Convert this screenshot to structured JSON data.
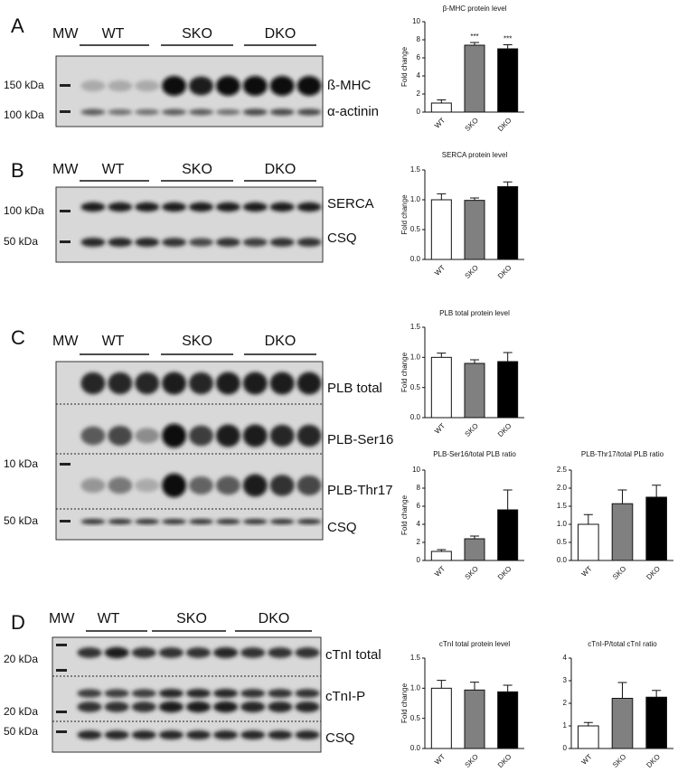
{
  "blots": [
    {
      "letter": "A",
      "mw": "MW",
      "groups": [
        "WT",
        "SKO",
        "DKO"
      ],
      "markers": [
        "150 kDa",
        "100 kDa"
      ],
      "proteins": [
        "ß-MHC",
        "α-actinin"
      ]
    },
    {
      "letter": "B",
      "mw": "MW",
      "groups": [
        "WT",
        "SKO",
        "DKO"
      ],
      "markers": [
        "100 kDa",
        "50 kDa"
      ],
      "proteins": [
        "SERCA",
        "CSQ"
      ]
    },
    {
      "letter": "C",
      "mw": "MW",
      "groups": [
        "WT",
        "SKO",
        "DKO"
      ],
      "markers": [
        "10 kDa",
        "50 kDa"
      ],
      "proteins": [
        "PLB total",
        "PLB-Ser16",
        "PLB-Thr17",
        "CSQ"
      ]
    },
    {
      "letter": "D",
      "mw": "MW",
      "groups": [
        "WT",
        "SKO",
        "DKO"
      ],
      "markers": [
        "20 kDa",
        "20 kDa",
        "50 kDa"
      ],
      "proteins": [
        "cTnI total",
        "cTnI-P",
        "CSQ"
      ]
    }
  ],
  "chart_data": [
    {
      "type": "bar",
      "title": "β-MHC protein level",
      "y_label": "Fold change",
      "categories": [
        "WT",
        "SKO",
        "DKO"
      ],
      "values": [
        1.0,
        7.4,
        7.0
      ],
      "errors": [
        0.35,
        0.3,
        0.45
      ],
      "colors": [
        "#ffffff",
        "#808080",
        "#000000"
      ],
      "annotations": [
        null,
        "***",
        "***"
      ],
      "ylim": [
        0,
        10
      ],
      "yticks": [
        0,
        2,
        4,
        6,
        8,
        10
      ]
    },
    {
      "type": "bar",
      "title": "SERCA protein level",
      "y_label": "Fold change",
      "categories": [
        "WT",
        "SKO",
        "DKO"
      ],
      "values": [
        1.0,
        0.99,
        1.22
      ],
      "errors": [
        0.1,
        0.04,
        0.08
      ],
      "colors": [
        "#ffffff",
        "#808080",
        "#000000"
      ],
      "ylim": [
        0,
        1.5
      ],
      "yticks": [
        {
          "value": 0,
          "label": "0.0"
        },
        {
          "value": 0.5,
          "label": "0.5"
        },
        {
          "value": 1,
          "label": "1.0"
        },
        {
          "value": 1.5,
          "label": "1.5"
        }
      ]
    },
    {
      "type": "bar",
      "title": "PLB total protein level",
      "y_label": "Fold change",
      "categories": [
        "WT",
        "SKO",
        "DKO"
      ],
      "values": [
        1.0,
        0.9,
        0.93
      ],
      "errors": [
        0.07,
        0.06,
        0.15
      ],
      "colors": [
        "#ffffff",
        "#808080",
        "#000000"
      ],
      "ylim": [
        0,
        1.5
      ],
      "yticks": [
        {
          "value": 0,
          "label": "0.0"
        },
        {
          "value": 0.5,
          "label": "0.5"
        },
        {
          "value": 1,
          "label": "1.0"
        },
        {
          "value": 1.5,
          "label": "1.5"
        }
      ]
    },
    {
      "type": "bar",
      "title": "PLB-Ser16/total PLB ratio",
      "y_label": "Fold change",
      "categories": [
        "WT",
        "SKO",
        "DKO"
      ],
      "values": [
        1.0,
        2.4,
        5.6
      ],
      "errors": [
        0.2,
        0.3,
        2.2
      ],
      "colors": [
        "#ffffff",
        "#808080",
        "#000000"
      ],
      "ylim": [
        0,
        10
      ],
      "yticks": [
        0,
        2,
        4,
        6,
        8,
        10
      ]
    },
    {
      "type": "bar",
      "title": "PLB-Thr17/total PLB ratio",
      "categories": [
        "WT",
        "SKO",
        "DKO"
      ],
      "values": [
        1.0,
        1.57,
        1.75
      ],
      "errors": [
        0.27,
        0.38,
        0.33
      ],
      "colors": [
        "#ffffff",
        "#808080",
        "#000000"
      ],
      "ylim": [
        0,
        2.5
      ],
      "yticks": [
        {
          "value": 0,
          "label": "0.0"
        },
        {
          "value": 0.5,
          "label": "0.5"
        },
        {
          "value": 1,
          "label": "1.0"
        },
        {
          "value": 1.5,
          "label": "1.5"
        },
        {
          "value": 2,
          "label": "2.0"
        },
        {
          "value": 2.5,
          "label": "2.5"
        }
      ]
    },
    {
      "type": "bar",
      "title": "cTnI total protein level",
      "y_label": "Fold change",
      "categories": [
        "WT",
        "SKO",
        "DKO"
      ],
      "values": [
        1.0,
        0.97,
        0.94
      ],
      "errors": [
        0.13,
        0.13,
        0.11
      ],
      "colors": [
        "#ffffff",
        "#808080",
        "#000000"
      ],
      "ylim": [
        0,
        1.5
      ],
      "yticks": [
        {
          "value": 0,
          "label": "0.0"
        },
        {
          "value": 0.5,
          "label": "0.5"
        },
        {
          "value": 1,
          "label": "1.0"
        },
        {
          "value": 1.5,
          "label": "1.5"
        }
      ]
    },
    {
      "type": "bar",
      "title": "cTnI-P/total cTnI ratio",
      "categories": [
        "WT",
        "SKO",
        "DKO"
      ],
      "values": [
        1.0,
        2.22,
        2.27
      ],
      "errors": [
        0.15,
        0.7,
        0.3
      ],
      "colors": [
        "#ffffff",
        "#808080",
        "#000000"
      ],
      "ylim": [
        0,
        4
      ],
      "yticks": [
        0,
        1,
        2,
        3,
        4
      ]
    }
  ]
}
